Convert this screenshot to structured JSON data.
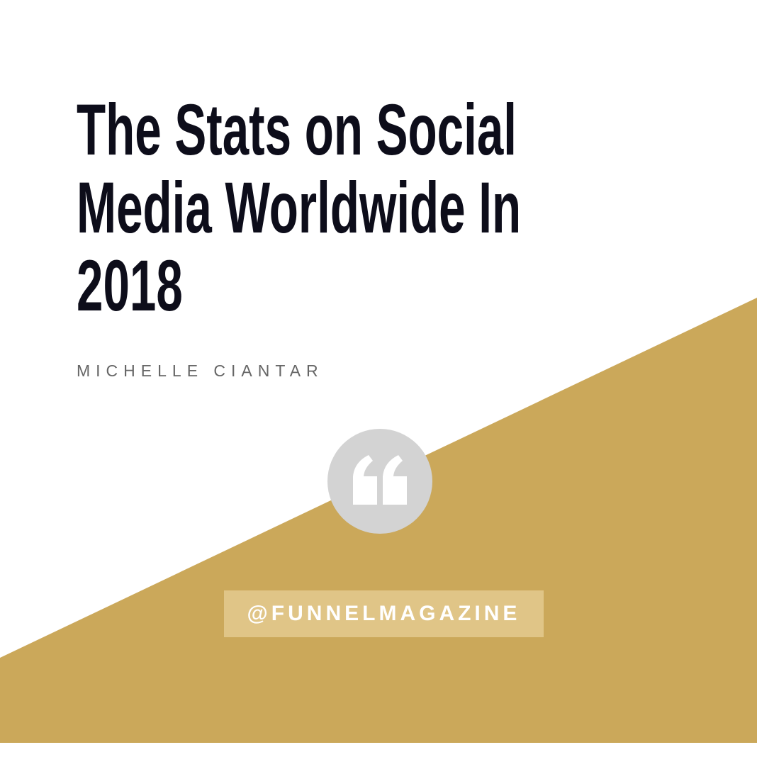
{
  "title_lines": [
    "The Stats on Social",
    "Media Worldwide In",
    "2018"
  ],
  "author": "MICHELLE CIANTAR",
  "handle": "@FUNNELMAGAZINE"
}
